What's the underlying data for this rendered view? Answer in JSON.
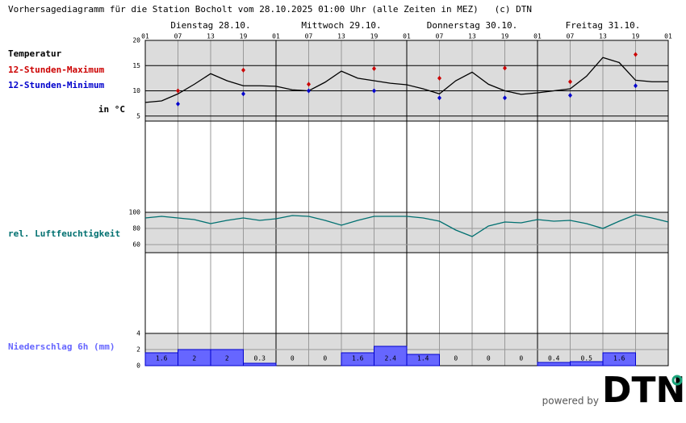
{
  "title": "Vorhersagediagramm für die Station Bocholt vom 28.10.2025 01:00 Uhr (alle Zeiten in MEZ)   (c) DTN",
  "powered_by": "powered by",
  "logo": "DTN",
  "chart_data": [
    {
      "type": "line",
      "days": [
        "Dienstag 28.10.",
        "Mittwoch 29.10.",
        "Donnerstag 30.10.",
        "Freitag 31.10."
      ],
      "categories": [
        "01",
        null,
        "07",
        null,
        "13",
        null,
        "19",
        null,
        "01",
        null,
        "07",
        null,
        "13",
        null,
        "19",
        null,
        "01",
        null,
        "07",
        null,
        "13",
        null,
        "19",
        null,
        "01",
        null,
        "07",
        null,
        "13",
        null,
        "19",
        null,
        "01"
      ],
      "y_label": "in °C",
      "ylim": [
        4,
        20
      ],
      "yticks": [
        5,
        10,
        15,
        20
      ],
      "grid": true,
      "series": [
        {
          "name": "Temperatur",
          "color": "#000000",
          "style": "line",
          "values": [
            7.7,
            8.0,
            9.4,
            11.3,
            13.4,
            12.0,
            11.0,
            11.0,
            10.9,
            10.2,
            10.0,
            11.7,
            13.9,
            12.5,
            12.0,
            11.5,
            11.2,
            10.4,
            9.4,
            12.0,
            13.7,
            11.3,
            10.0,
            9.3,
            9.6,
            10.0,
            10.4,
            12.9,
            16.6,
            15.6,
            12.1,
            11.8,
            11.8
          ]
        },
        {
          "name": "12-Stunden-Maximum",
          "color": "#cc0000",
          "style": "points",
          "values": [
            null,
            null,
            10.0,
            null,
            null,
            null,
            14.1,
            null,
            null,
            null,
            11.3,
            null,
            null,
            null,
            14.4,
            null,
            null,
            null,
            12.5,
            null,
            null,
            null,
            14.5,
            null,
            null,
            null,
            11.8,
            null,
            null,
            null,
            17.2,
            null,
            null
          ]
        },
        {
          "name": "12-Stunden-Minimum",
          "color": "#0000cc",
          "style": "points",
          "values": [
            null,
            null,
            7.4,
            null,
            null,
            null,
            9.4,
            null,
            null,
            null,
            10.0,
            null,
            null,
            null,
            10.0,
            null,
            null,
            null,
            8.6,
            null,
            null,
            null,
            8.6,
            null,
            null,
            null,
            9.1,
            null,
            null,
            null,
            11.0,
            null,
            null
          ]
        }
      ]
    },
    {
      "type": "line",
      "ylim": [
        50,
        100
      ],
      "yticks": [
        60,
        80,
        100
      ],
      "grid": true,
      "series": [
        {
          "name": "rel. Luftfeuchtigkeit",
          "color": "#007070",
          "style": "line",
          "values": [
            93,
            95,
            93,
            91,
            86,
            90,
            93,
            90,
            92,
            96,
            95,
            90,
            84,
            90,
            95,
            95,
            95,
            93,
            89,
            78,
            70,
            83,
            88,
            87,
            91,
            89,
            90,
            86,
            80,
            89,
            97,
            93,
            88
          ]
        }
      ]
    },
    {
      "type": "bar",
      "ylim": [
        0,
        4
      ],
      "yticks": [
        0,
        2,
        4
      ],
      "grid": true,
      "series": [
        {
          "name": "Niederschlag 6h (mm)",
          "color": "#6666ff",
          "values": [
            1.6,
            2,
            2,
            0.3,
            0,
            0,
            1.6,
            2.4,
            1.4,
            0,
            0,
            0,
            0.4,
            0.5,
            1.6,
            null
          ]
        }
      ]
    }
  ]
}
